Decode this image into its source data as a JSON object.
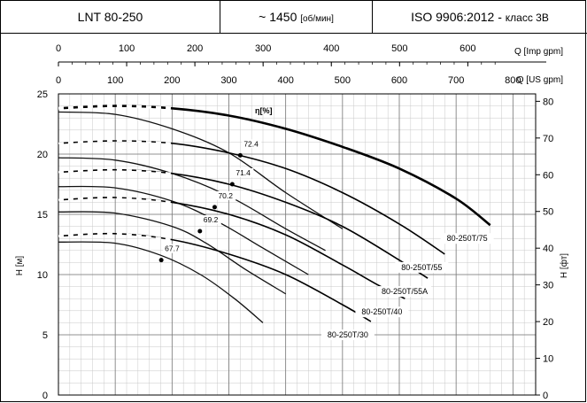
{
  "header": {
    "model": "LNT 80-250",
    "speed_prefix": "~ 1450",
    "speed_unit": "[об/мин]",
    "standard": "ISO 9906:2012 -",
    "standard_class": "класс 3В"
  },
  "chart_data": {
    "type": "line",
    "x_top_label": "Q [Imp gpm]",
    "x_top_ticks": [
      0,
      100,
      200,
      300,
      400,
      500,
      600
    ],
    "x_label": "Q [US gpm]",
    "x_ticks": [
      0,
      100,
      200,
      300,
      400,
      500,
      600,
      700,
      800
    ],
    "xlim": [
      0,
      840
    ],
    "ylabel_left": "H [м]",
    "y_left_ticks": [
      0,
      5,
      10,
      15,
      20,
      25
    ],
    "ylim_left": [
      0,
      25
    ],
    "ylabel_right": "H [фт]",
    "y_right_ticks": [
      0,
      10,
      20,
      30,
      40,
      50,
      60,
      70,
      80
    ],
    "efficiency_label": "η[%]",
    "grid": true,
    "series": [
      {
        "name": "80-250T/75",
        "x": [
          0,
          100,
          200,
          300,
          400,
          500,
          600,
          700,
          760
        ],
        "y": [
          23.8,
          24.0,
          23.8,
          23.2,
          22.1,
          20.6,
          18.8,
          16.3,
          14.1
        ]
      },
      {
        "name": "80-250T/55",
        "x": [
          0,
          100,
          200,
          300,
          400,
          500,
          600,
          680
        ],
        "y": [
          20.9,
          21.1,
          20.9,
          20.1,
          18.8,
          16.8,
          14.2,
          11.7
        ]
      },
      {
        "name": "80-250T/55A",
        "x": [
          0,
          100,
          200,
          300,
          400,
          500,
          600,
          650
        ],
        "y": [
          18.5,
          18.7,
          18.4,
          17.5,
          16.0,
          14.0,
          11.2,
          9.7
        ]
      },
      {
        "name": "80-250T/40",
        "x": [
          0,
          100,
          200,
          300,
          400,
          500,
          560,
          610
        ],
        "y": [
          16.2,
          16.4,
          16.0,
          15.0,
          13.3,
          10.8,
          9.2,
          8.0
        ]
      },
      {
        "name": "80-250T/30",
        "x": [
          0,
          100,
          200,
          300,
          400,
          500,
          550
        ],
        "y": [
          13.2,
          13.4,
          12.9,
          11.7,
          10.0,
          7.5,
          6.1
        ]
      }
    ],
    "efficiency_curves": [
      {
        "label": "67.7",
        "x": [
          0,
          100,
          180,
          250,
          310,
          360
        ],
        "y": [
          12.7,
          12.6,
          11.6,
          10.0,
          8.0,
          6.0
        ]
      },
      {
        "label": "69.2",
        "x": [
          0,
          100,
          200,
          260,
          330,
          400
        ],
        "y": [
          15.2,
          15.1,
          14.0,
          12.6,
          10.4,
          8.4
        ]
      },
      {
        "label": "70.2",
        "x": [
          0,
          100,
          200,
          280,
          360,
          440
        ],
        "y": [
          17.3,
          17.2,
          16.1,
          14.4,
          12.2,
          10.0
        ]
      },
      {
        "label": "71.4",
        "x": [
          0,
          100,
          200,
          300,
          400,
          470
        ],
        "y": [
          19.7,
          19.5,
          18.4,
          16.5,
          13.8,
          12.0
        ]
      },
      {
        "label": "72.4",
        "x": [
          0,
          100,
          200,
          300,
          400,
          500
        ],
        "y": [
          23.5,
          23.3,
          22.1,
          20.1,
          16.8,
          13.8
        ]
      }
    ],
    "efficiency_points": [
      {
        "label": "67.7",
        "x": 181,
        "y": 11.2
      },
      {
        "label": "69.2",
        "x": 249,
        "y": 13.6
      },
      {
        "label": "70.2",
        "x": 275,
        "y": 15.6
      },
      {
        "label": "71.4",
        "x": 306,
        "y": 17.5
      },
      {
        "label": "72.4",
        "x": 320,
        "y": 19.9
      }
    ]
  }
}
